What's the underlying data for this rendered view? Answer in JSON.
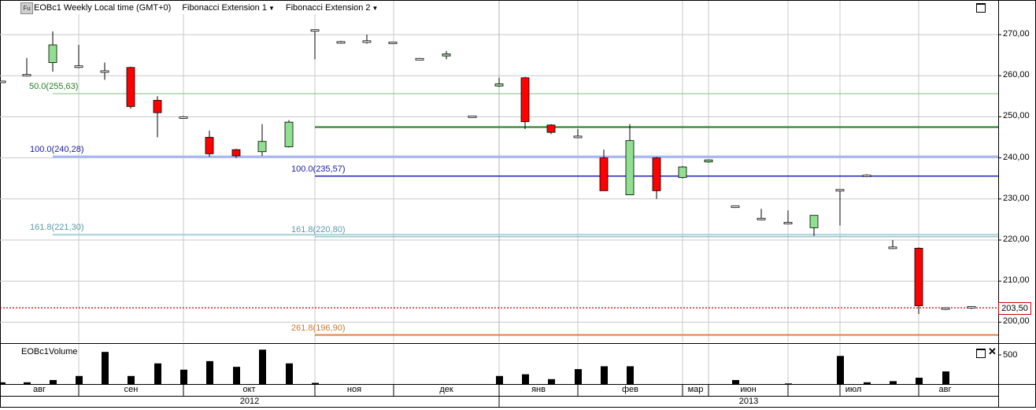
{
  "header": {
    "badge": "Fu",
    "instrument": "EOBc1 Weekly Local time (GMT+0)",
    "study1": "Fibonacci Extension 1",
    "study2": "Fibonacci Extension 2"
  },
  "volume_title": "EOBc1Volume",
  "volume_tick": "500",
  "last_price_label": "203,50",
  "price_ticks": [
    "270,00",
    "260,00",
    "250,00",
    "240,00",
    "230,00",
    "220,00",
    "210,00",
    "200,00"
  ],
  "fib_labels": [
    {
      "text": "50.0(255,63)",
      "color": "#2a7a2a"
    },
    {
      "text": "100.0(240,28)",
      "color": "#1a1aa0"
    },
    {
      "text": "161.8(221,30)",
      "color": "#5a9aa8"
    },
    {
      "text": "100.0(235,57)",
      "color": "#1a1aa0"
    },
    {
      "text": "161.8(220,80)",
      "color": "#5a9aa8"
    },
    {
      "text": "261.8(196,90)",
      "color": "#d07a30"
    }
  ],
  "month_labels": [
    "авг",
    "сен",
    "окт",
    "ноя",
    "дек",
    "янв",
    "фев",
    "мар",
    "июн",
    "июл",
    "авг"
  ],
  "year_labels": [
    "2012",
    "2013"
  ],
  "colors": {
    "up": "#90e090",
    "down": "#ff0000",
    "grid": "#c8c8c8",
    "fib50": "#7fbf7f",
    "fib100a": "#a8b8f0",
    "fib161a": "#a8d0d8",
    "level_green": "#1e7a1e",
    "fib100b": "#2020c0",
    "fib161b": "#70a8b8",
    "fib261": "#e08040",
    "last": "#d00000"
  },
  "chart_data": {
    "type": "candlestick",
    "title": "EOBc1 Weekly Local time (GMT+0)",
    "ylim": [
      196,
      279
    ],
    "yticks": [
      200,
      210,
      220,
      230,
      240,
      250,
      260,
      270
    ],
    "fib_levels": [
      {
        "label": "50.0",
        "value": 255.63
      },
      {
        "label": "100.0",
        "value": 240.28
      },
      {
        "label": "161.8",
        "value": 221.3
      },
      {
        "label": "100.0",
        "value": 235.57
      },
      {
        "label": "161.8",
        "value": 220.8
      },
      {
        "label": "261.8",
        "value": 196.9
      }
    ],
    "horizontal_level": 247.5,
    "last_price": 203.5,
    "candles": [
      {
        "o": 258.5,
        "h": 258.7,
        "l": 258.3,
        "c": 258.7
      },
      {
        "o": 260.0,
        "h": 264.3,
        "l": 259.8,
        "c": 260.3
      },
      {
        "o": 263.2,
        "h": 270.8,
        "l": 261.0,
        "c": 267.5
      },
      {
        "o": 262.0,
        "h": 267.5,
        "l": 261.8,
        "c": 262.4
      },
      {
        "o": 260.8,
        "h": 263.2,
        "l": 259.0,
        "c": 261.2
      },
      {
        "o": 262.0,
        "h": 262.2,
        "l": 252.0,
        "c": 252.5
      },
      {
        "o": 254.0,
        "h": 255.0,
        "l": 245.0,
        "c": 251.0
      },
      {
        "o": 250.0,
        "h": 250.2,
        "l": 249.8,
        "c": 249.8
      },
      {
        "o": 245.0,
        "h": 246.6,
        "l": 240.3,
        "c": 241.0
      },
      {
        "o": 242.0,
        "h": 242.2,
        "l": 240.0,
        "c": 240.5
      },
      {
        "o": 241.5,
        "h": 248.2,
        "l": 240.5,
        "c": 244.0
      },
      {
        "o": 242.7,
        "h": 249.2,
        "l": 242.5,
        "c": 248.7
      },
      {
        "o": 271.0,
        "h": 271.2,
        "l": 264.0,
        "c": 271.2
      },
      {
        "o": 268.0,
        "h": 268.5,
        "l": 267.8,
        "c": 268.3
      },
      {
        "o": 268.1,
        "h": 270.0,
        "l": 267.8,
        "c": 268.5
      },
      {
        "o": 268.0,
        "h": 268.3,
        "l": 267.8,
        "c": 268.2
      },
      {
        "o": 264.0,
        "h": 264.3,
        "l": 263.8,
        "c": 264.2
      },
      {
        "o": 264.8,
        "h": 266.0,
        "l": 264.0,
        "c": 265.3
      },
      {
        "o": 250.0,
        "h": 250.2,
        "l": 249.8,
        "c": 250.2
      },
      {
        "o": 257.5,
        "h": 259.5,
        "l": 257.3,
        "c": 258.0
      },
      {
        "o": 259.5,
        "h": 259.7,
        "l": 247.0,
        "c": 248.8
      },
      {
        "o": 248.0,
        "h": 248.2,
        "l": 245.8,
        "c": 246.2
      },
      {
        "o": 245.0,
        "h": 247.0,
        "l": 244.8,
        "c": 245.3
      },
      {
        "o": 240.0,
        "h": 242.0,
        "l": 232.0,
        "c": 232.0
      },
      {
        "o": 231.0,
        "h": 248.2,
        "l": 231.0,
        "c": 244.2
      },
      {
        "o": 240.0,
        "h": 240.2,
        "l": 230.0,
        "c": 232.0
      },
      {
        "o": 235.2,
        "h": 238.0,
        "l": 235.0,
        "c": 237.8
      },
      {
        "o": 239.0,
        "h": 239.6,
        "l": 238.8,
        "c": 239.5
      },
      {
        "o": 228.0,
        "h": 228.3,
        "l": 227.8,
        "c": 228.3
      },
      {
        "o": 225.0,
        "h": 227.6,
        "l": 224.8,
        "c": 225.3
      },
      {
        "o": 224.0,
        "h": 227.2,
        "l": 223.8,
        "c": 224.3
      },
      {
        "o": 223.0,
        "h": 226.0,
        "l": 221.0,
        "c": 226.0
      },
      {
        "o": 232.0,
        "h": 232.3,
        "l": 223.5,
        "c": 232.3
      },
      {
        "o": 235.5,
        "h": 236.0,
        "l": 235.3,
        "c": 235.8
      },
      {
        "o": 218.0,
        "h": 220.0,
        "l": 217.8,
        "c": 218.3
      },
      {
        "o": 218.0,
        "h": 218.2,
        "l": 202.0,
        "c": 204.0
      },
      {
        "o": 203.2,
        "h": 203.6,
        "l": 203.0,
        "c": 203.5
      },
      {
        "o": 203.5,
        "h": 203.8,
        "l": 203.2,
        "c": 203.8
      }
    ],
    "volume": [
      {
        "v": 30
      },
      {
        "v": 30
      },
      {
        "v": 70
      },
      {
        "v": 140
      },
      {
        "v": 560
      },
      {
        "v": 140
      },
      {
        "v": 360
      },
      {
        "v": 250
      },
      {
        "v": 400
      },
      {
        "v": 300
      },
      {
        "v": 600
      },
      {
        "v": 360
      },
      {
        "v": 20
      },
      {
        "v": 0
      },
      {
        "v": 0
      },
      {
        "v": 0
      },
      {
        "v": 0
      },
      {
        "v": 0
      },
      {
        "v": 0
      },
      {
        "v": 140
      },
      {
        "v": 170
      },
      {
        "v": 85
      },
      {
        "v": 260
      },
      {
        "v": 310
      },
      {
        "v": 310
      },
      {
        "v": 0
      },
      {
        "v": 0
      },
      {
        "v": 0
      },
      {
        "v": 70
      },
      {
        "v": 0
      },
      {
        "v": 10
      },
      {
        "v": 0
      },
      {
        "v": 490
      },
      {
        "v": 30
      },
      {
        "v": 50
      },
      {
        "v": 110
      },
      {
        "v": 220
      },
      {
        "v": 0
      }
    ],
    "xlabels": [
      "авг",
      "сен",
      "окт",
      "ноя",
      "дек",
      "янв",
      "фев",
      "мар",
      "июн",
      "июл",
      "авг"
    ],
    "years": [
      "2012",
      "2013"
    ]
  }
}
